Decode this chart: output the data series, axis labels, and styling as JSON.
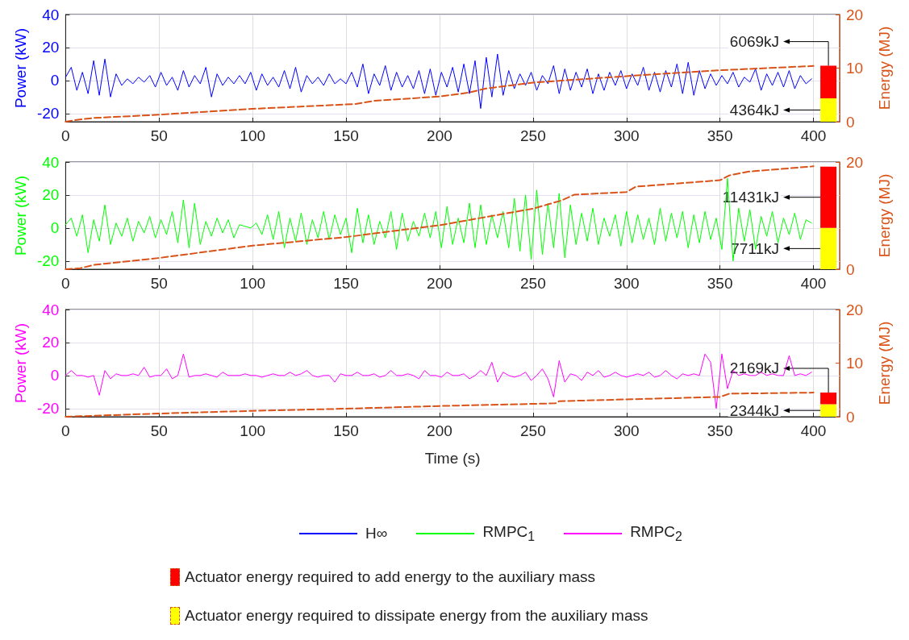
{
  "chart_data": [
    {
      "type": "line",
      "ylabel": "Power (kW)",
      "y2label": "Energy (MJ)",
      "xlim": [
        0,
        414
      ],
      "xticks": [
        0,
        50,
        100,
        150,
        200,
        250,
        300,
        350,
        400
      ],
      "ylim": [
        -25,
        40
      ],
      "yticks": [
        -20,
        0,
        20,
        40
      ],
      "y2lim": [
        0,
        20
      ],
      "y2ticks": [
        0,
        10,
        20
      ],
      "grid": true,
      "legend": "bottom",
      "stacked": true,
      "x": [
        0,
        3,
        6,
        9,
        12,
        15,
        18,
        21,
        24,
        27,
        30,
        33,
        36,
        39,
        42,
        45,
        48,
        51,
        54,
        57,
        60,
        63,
        66,
        69,
        72,
        75,
        78,
        81,
        84,
        87,
        90,
        93,
        96,
        99,
        102,
        105,
        108,
        111,
        114,
        117,
        120,
        123,
        126,
        129,
        132,
        135,
        138,
        141,
        144,
        147,
        150,
        153,
        156,
        159,
        162,
        165,
        168,
        171,
        174,
        177,
        180,
        183,
        186,
        189,
        192,
        195,
        198,
        201,
        204,
        207,
        210,
        213,
        216,
        219,
        222,
        225,
        228,
        231,
        234,
        237,
        240,
        243,
        246,
        249,
        252,
        255,
        258,
        261,
        264,
        267,
        270,
        273,
        276,
        279,
        282,
        285,
        288,
        291,
        294,
        297,
        300,
        303,
        306,
        309,
        312,
        315,
        318,
        321,
        324,
        327,
        330,
        333,
        336,
        339,
        342,
        345,
        348,
        351,
        354,
        357,
        360,
        363,
        366,
        369,
        372,
        375,
        378,
        381,
        384,
        387,
        390,
        393,
        396,
        399
      ],
      "series": [
        {
          "name": "H∞",
          "color": "#0000ff",
          "values": [
            2,
            8,
            -6,
            5,
            -8,
            12,
            -9,
            13,
            -10,
            4,
            -3,
            1,
            -2,
            2,
            -1,
            3,
            -4,
            5,
            -3,
            2,
            -6,
            6,
            -4,
            3,
            -2,
            8,
            -10,
            4,
            -3,
            2,
            -2,
            3,
            -2,
            5,
            -6,
            4,
            -3,
            2,
            -4,
            6,
            -5,
            8,
            -7,
            3,
            -2,
            2,
            -3,
            4,
            -2,
            1,
            -2,
            5,
            -4,
            10,
            -8,
            4,
            -3,
            9,
            -6,
            5,
            -4,
            3,
            -5,
            6,
            -8,
            7,
            -9,
            5,
            -4,
            8,
            -7,
            10,
            -8,
            12,
            -17,
            14,
            -10,
            16,
            -9,
            6,
            -5,
            4,
            -3,
            5,
            -6,
            3,
            -2,
            9,
            -8,
            7,
            -6,
            5,
            -4,
            7,
            -8,
            4,
            -6,
            5,
            -3,
            6,
            -5,
            4,
            -3,
            8,
            -6,
            5,
            -7,
            6,
            -4,
            10,
            -8,
            11,
            -9,
            6,
            -5,
            4,
            -3,
            3,
            -2,
            5,
            -4,
            2,
            -1,
            7,
            -6,
            4,
            -3,
            5,
            -4,
            6,
            -5,
            3,
            -2,
            1
          ]
        },
        {
          "type": "line",
          "axis": "y2",
          "color": "#d95319",
          "line_style": "dashed",
          "x": [
            0,
            5,
            15,
            50,
            100,
            155,
            165,
            200,
            215,
            225,
            250,
            300,
            350,
            400
          ],
          "values": [
            0,
            0.3,
            0.7,
            1.3,
            2.4,
            3.3,
            3.9,
            4.7,
            5.4,
            6.2,
            7.3,
            8.5,
            9.6,
            10.4
          ]
        },
        {
          "type": "bar",
          "axis": "y2",
          "x": [
            408
          ],
          "color": "#ffff00",
          "values": [
            4.364
          ]
        },
        {
          "type": "bar",
          "axis": "y2",
          "x": [
            408
          ],
          "color": "#ff0000",
          "values": [
            6.069
          ]
        }
      ],
      "annotations": [
        "6069kJ",
        "4364kJ"
      ]
    },
    {
      "type": "line",
      "ylabel": "Power (kW)",
      "y2label": "Energy (MJ)",
      "xlim": [
        0,
        414
      ],
      "xticks": [
        0,
        50,
        100,
        150,
        200,
        250,
        300,
        350,
        400
      ],
      "ylim": [
        -25,
        40
      ],
      "yticks": [
        -20,
        0,
        20,
        40
      ],
      "y2lim": [
        0,
        20
      ],
      "y2ticks": [
        0,
        20
      ],
      "grid": true,
      "legend": "bottom",
      "stacked": true,
      "x": [
        0,
        3,
        6,
        9,
        12,
        15,
        18,
        21,
        24,
        27,
        30,
        33,
        36,
        39,
        42,
        45,
        48,
        51,
        54,
        57,
        60,
        63,
        66,
        69,
        72,
        75,
        78,
        81,
        84,
        87,
        90,
        93,
        96,
        99,
        102,
        105,
        108,
        111,
        114,
        117,
        120,
        123,
        126,
        129,
        132,
        135,
        138,
        141,
        144,
        147,
        150,
        153,
        156,
        159,
        162,
        165,
        168,
        171,
        174,
        177,
        180,
        183,
        186,
        189,
        192,
        195,
        198,
        201,
        204,
        207,
        210,
        213,
        216,
        219,
        222,
        225,
        228,
        231,
        234,
        237,
        240,
        243,
        246,
        249,
        252,
        255,
        258,
        261,
        264,
        267,
        270,
        273,
        276,
        279,
        282,
        285,
        288,
        291,
        294,
        297,
        300,
        303,
        306,
        309,
        312,
        315,
        318,
        321,
        324,
        327,
        330,
        333,
        336,
        339,
        342,
        345,
        348,
        351,
        354,
        357,
        360,
        363,
        366,
        369,
        372,
        375,
        378,
        381,
        384,
        387,
        390,
        393,
        396,
        399
      ],
      "series": [
        {
          "name": "RMPC$_{1}$",
          "color": "#00ff00",
          "values": [
            2,
            6,
            -5,
            8,
            -15,
            5,
            -8,
            14,
            -10,
            3,
            -5,
            6,
            -8,
            4,
            -3,
            7,
            -6,
            5,
            -4,
            10,
            -9,
            17,
            -12,
            15,
            -10,
            4,
            -5,
            6,
            -3,
            5,
            -6,
            2,
            1,
            0,
            3,
            -4,
            8,
            -7,
            10,
            -12,
            6,
            -8,
            9,
            -10,
            5,
            -6,
            10,
            -7,
            8,
            -4,
            6,
            -15,
            12,
            -9,
            8,
            -10,
            4,
            -6,
            10,
            -13,
            9,
            -8,
            4,
            -5,
            9,
            -6,
            10,
            -12,
            13,
            -10,
            6,
            -9,
            15,
            -12,
            14,
            -10,
            8,
            -6,
            10,
            -12,
            18,
            -14,
            20,
            -19,
            23,
            -16,
            15,
            -12,
            21,
            -18,
            14,
            -10,
            9,
            -8,
            12,
            -10,
            6,
            -5,
            8,
            -11,
            10,
            -9,
            8,
            -7,
            6,
            -10,
            12,
            -8,
            9,
            -6,
            10,
            -12,
            8,
            -9,
            10,
            -7,
            6,
            -13,
            30,
            -20,
            12,
            -8,
            11,
            -13,
            7,
            -5,
            10,
            -9,
            6,
            -4,
            9,
            -7,
            5,
            3
          ]
        },
        {
          "type": "line",
          "axis": "y2",
          "color": "#d95319",
          "line_style": "dashed",
          "x": [
            0,
            8,
            15,
            50,
            100,
            150,
            200,
            250,
            265,
            272,
            300,
            305,
            350,
            355,
            365,
            400
          ],
          "values": [
            0,
            0.2,
            0.8,
            2.1,
            4.4,
            6.0,
            8.2,
            11.3,
            12.8,
            13.9,
            14.4,
            15.4,
            16.6,
            17.5,
            18.2,
            19.2
          ]
        },
        {
          "type": "bar",
          "axis": "y2",
          "x": [
            408
          ],
          "color": "#ffff00",
          "values": [
            7.711
          ]
        },
        {
          "type": "bar",
          "axis": "y2",
          "x": [
            408
          ],
          "color": "#ff0000",
          "values": [
            11.431
          ]
        }
      ],
      "annotations": [
        "11431kJ",
        "7711kJ"
      ]
    },
    {
      "type": "line",
      "xlabel": "Time (s)",
      "ylabel": "Power (kW)",
      "y2label": "Energy (MJ)",
      "xlim": [
        0,
        414
      ],
      "xticks": [
        0,
        50,
        100,
        150,
        200,
        250,
        300,
        350,
        400
      ],
      "ylim": [
        -25,
        40
      ],
      "yticks": [
        -20,
        0,
        20,
        40
      ],
      "y2lim": [
        0,
        20
      ],
      "y2ticks": [
        0,
        10,
        20
      ],
      "grid": true,
      "legend": "bottom",
      "stacked": true,
      "x": [
        0,
        3,
        6,
        9,
        12,
        15,
        18,
        21,
        24,
        27,
        30,
        33,
        36,
        39,
        42,
        45,
        48,
        51,
        54,
        57,
        60,
        63,
        66,
        69,
        72,
        75,
        78,
        81,
        84,
        87,
        90,
        93,
        96,
        99,
        102,
        105,
        108,
        111,
        114,
        117,
        120,
        123,
        126,
        129,
        132,
        135,
        138,
        141,
        144,
        147,
        150,
        153,
        156,
        159,
        162,
        165,
        168,
        171,
        174,
        177,
        180,
        183,
        186,
        189,
        192,
        195,
        198,
        201,
        204,
        207,
        210,
        213,
        216,
        219,
        222,
        225,
        228,
        231,
        234,
        237,
        240,
        243,
        246,
        249,
        252,
        255,
        258,
        261,
        264,
        267,
        270,
        273,
        276,
        279,
        282,
        285,
        288,
        291,
        294,
        297,
        300,
        303,
        306,
        309,
        312,
        315,
        318,
        321,
        324,
        327,
        330,
        333,
        336,
        339,
        342,
        345,
        348,
        351,
        354,
        357,
        360,
        363,
        366,
        369,
        372,
        375,
        378,
        381,
        384,
        387,
        390,
        393,
        396,
        399
      ],
      "series": [
        {
          "name": "RMPC$_{2}$",
          "color": "#ff00ff",
          "values": [
            0,
            3,
            0,
            0,
            -1,
            0,
            -12,
            3,
            -2,
            1,
            0,
            0,
            1,
            0,
            5,
            -1,
            0,
            0,
            4,
            -2,
            0,
            13,
            -1,
            0,
            0,
            1,
            0,
            -1,
            2,
            0,
            0,
            0,
            1,
            0,
            0,
            -1,
            0,
            1,
            0,
            0,
            2,
            0,
            1,
            3,
            0,
            -1,
            0,
            0,
            -4,
            1,
            0,
            0,
            2,
            0,
            0,
            1,
            -1,
            0,
            3,
            0,
            0,
            1,
            0,
            -2,
            3,
            0,
            0,
            -1,
            2,
            0,
            0,
            1,
            -2,
            0,
            3,
            0,
            8,
            -4,
            2,
            0,
            -1,
            0,
            2,
            -3,
            0,
            4,
            -2,
            -13,
            9,
            -4,
            1,
            0,
            -3,
            2,
            0,
            3,
            -1,
            0,
            2,
            0,
            -1,
            0,
            1,
            0,
            2,
            -1,
            0,
            3,
            0,
            -2,
            1,
            0,
            1,
            0,
            13,
            8,
            -20,
            13,
            -8,
            3,
            0,
            1,
            0,
            0,
            2,
            0,
            1,
            0,
            0,
            12,
            0,
            1,
            0,
            2
          ]
        },
        {
          "type": "line",
          "axis": "y2",
          "color": "#d95319",
          "line_style": "dashed",
          "x": [
            0,
            50,
            100,
            150,
            200,
            262,
            264,
            350,
            355,
            400
          ],
          "values": [
            0,
            0.6,
            1.1,
            1.5,
            2.0,
            2.5,
            2.9,
            3.7,
            4.3,
            4.5
          ]
        },
        {
          "type": "bar",
          "axis": "y2",
          "x": [
            408
          ],
          "color": "#ffff00",
          "values": [
            2.344
          ],
          "name": "Actuator energy required to dissipate energy from the auxiliary mass"
        },
        {
          "type": "bar",
          "axis": "y2",
          "x": [
            408
          ],
          "color": "#ff0000",
          "values": [
            2.169
          ],
          "name": "Actuator energy required to add energy to the auxiliary mass"
        }
      ],
      "annotations": [
        "2169kJ",
        "2344kJ"
      ]
    }
  ]
}
